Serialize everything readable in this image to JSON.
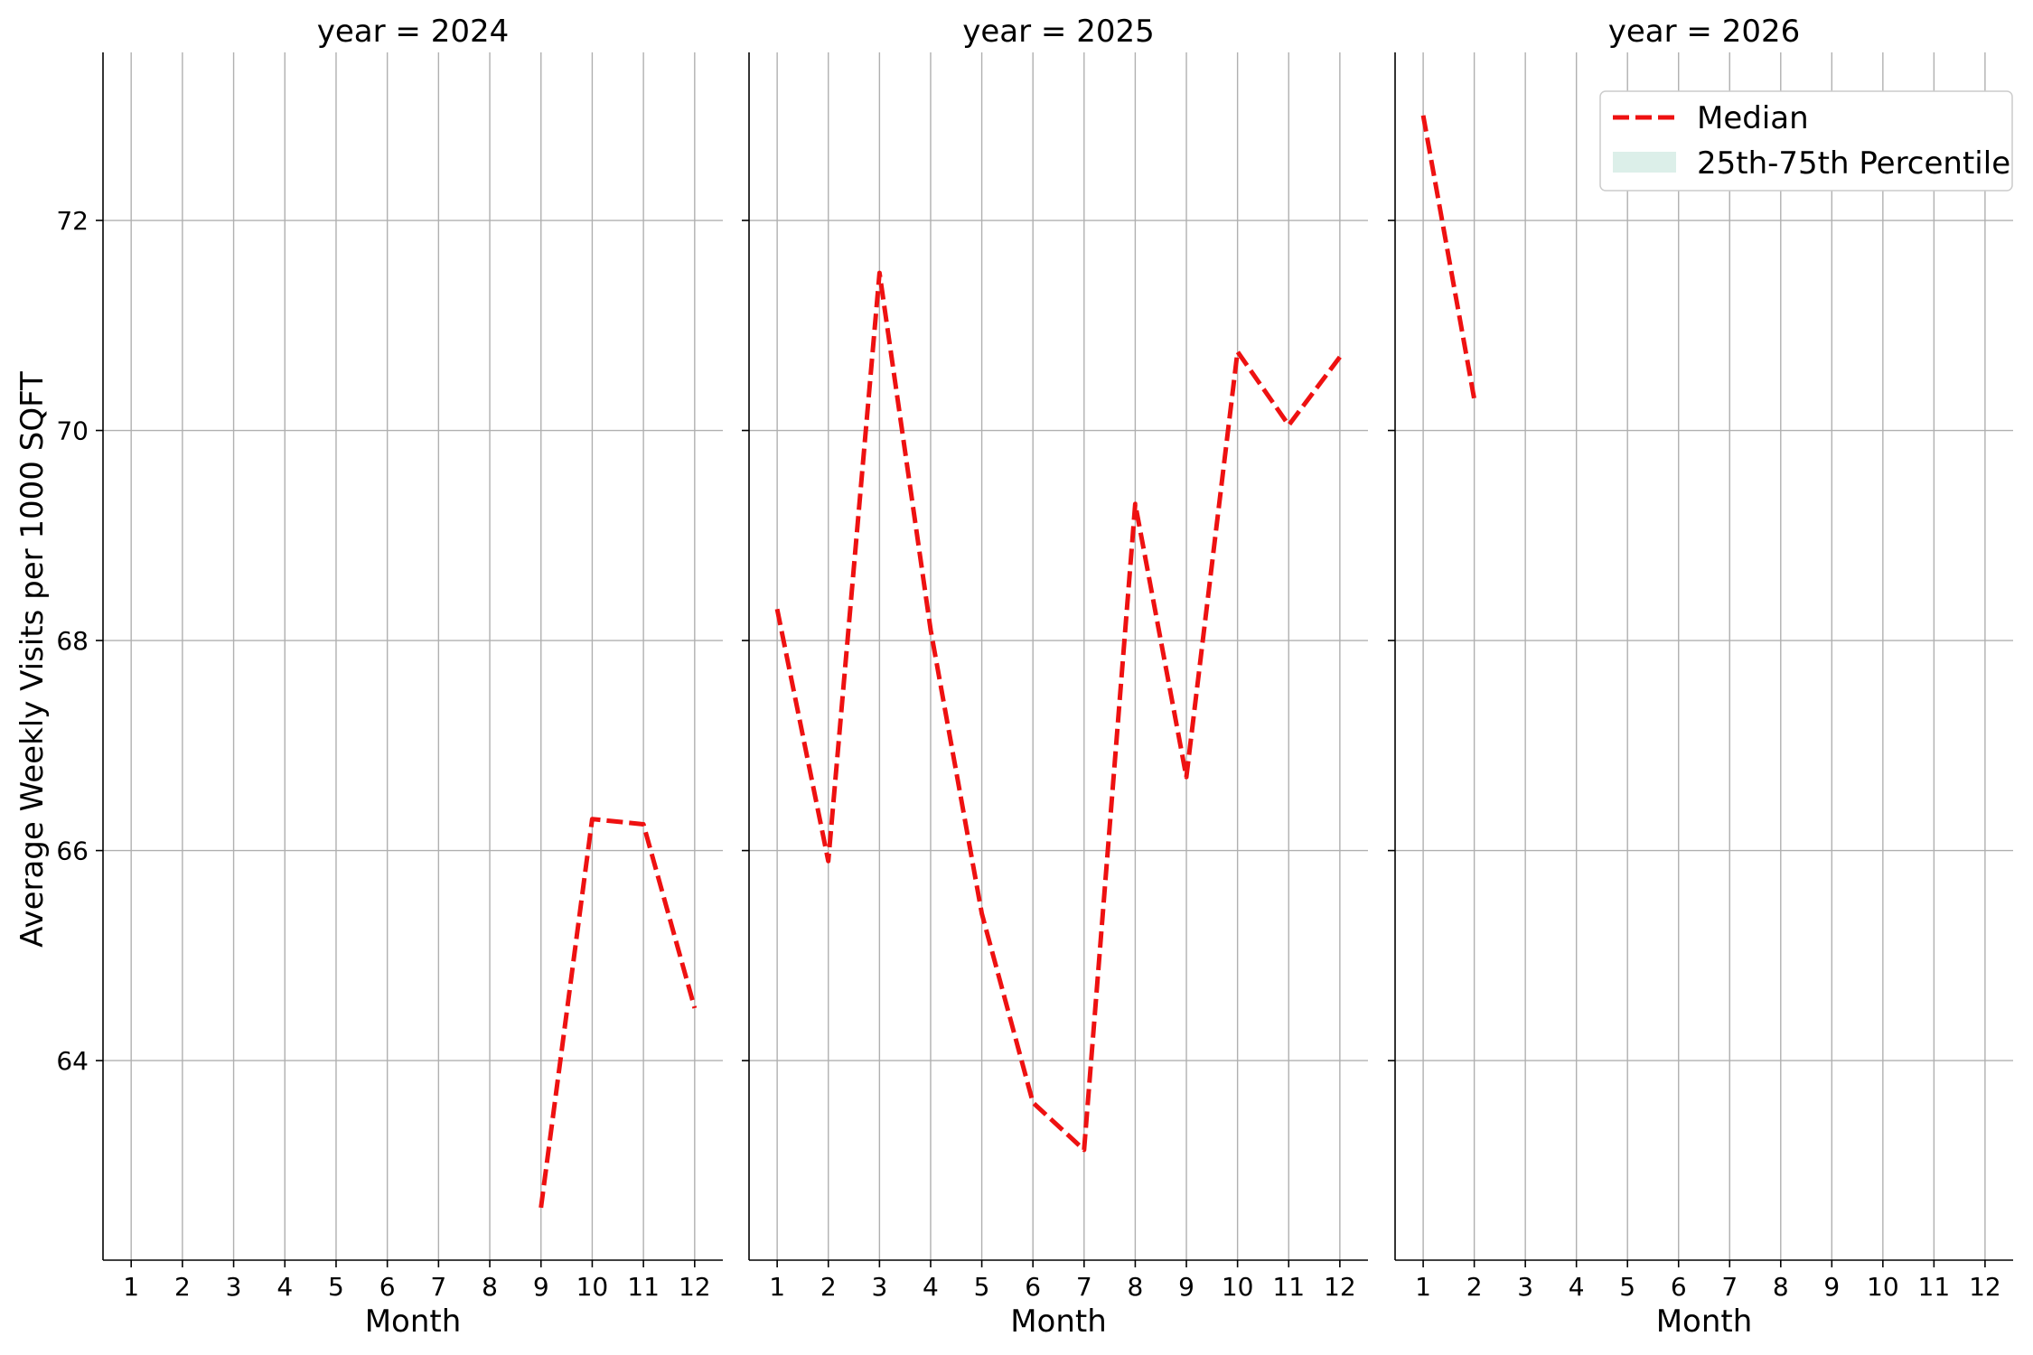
{
  "chart_data": {
    "type": "line",
    "ylabel": "Average Weekly Visits per 1000 SQFT",
    "xlabel": "Month",
    "x_ticks": [
      1,
      2,
      3,
      4,
      5,
      6,
      7,
      8,
      9,
      10,
      11,
      12
    ],
    "ylim": [
      62.1,
      73.6
    ],
    "y_ticks": [
      64,
      66,
      68,
      70,
      72
    ],
    "xlim": [
      0.45,
      12.55
    ],
    "grid": true,
    "legend": {
      "placement": "top-right",
      "entries": [
        {
          "label": "Median",
          "style": "dashed-line",
          "color": "#ee1111"
        },
        {
          "label": "25th-75th Percentile",
          "style": "band",
          "color": "#dcefe9"
        }
      ]
    },
    "facets": [
      {
        "title": "year = 2024",
        "series": [
          {
            "x": [
              9,
              10,
              11,
              12
            ],
            "y": [
              62.6,
              66.3,
              66.25,
              64.5
            ]
          }
        ]
      },
      {
        "title": "year = 2025",
        "series": [
          {
            "x": [
              1,
              2,
              3,
              4,
              5,
              6,
              7,
              8,
              9,
              10,
              11,
              12
            ],
            "y": [
              68.3,
              65.9,
              71.5,
              68.1,
              65.4,
              63.6,
              63.15,
              69.3,
              66.7,
              70.75,
              70.05,
              70.7
            ]
          }
        ]
      },
      {
        "title": "year = 2026",
        "series": [
          {
            "x": [
              1,
              2
            ],
            "y": [
              73.0,
              70.3
            ]
          }
        ]
      }
    ]
  }
}
